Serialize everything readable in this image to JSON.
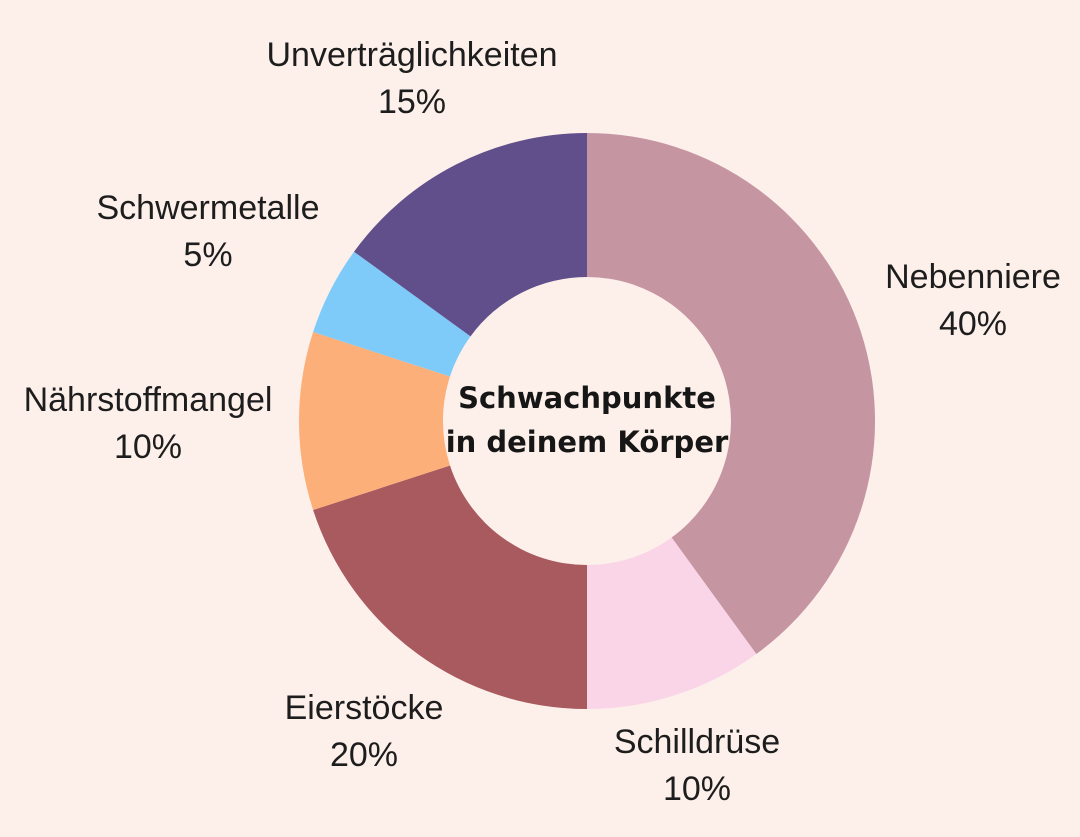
{
  "page": {
    "background_color": "#fdf0eb"
  },
  "center_title": {
    "line1": "Schwachpunkte",
    "line2": "in deinem Körper"
  },
  "chart_data": {
    "type": "pie",
    "variant": "donut",
    "title": "Schwachpunkte in deinem Körper",
    "start_angle_deg": 0,
    "direction": "clockwise",
    "legend_position": "labels-around-slices",
    "units": "percent",
    "segments": [
      {
        "label": "Nebenniere",
        "value": 40,
        "display_value": "40%",
        "color": "#c695a2"
      },
      {
        "label": "Schilldrüse",
        "value": 10,
        "display_value": "10%",
        "color": "#fad5e8"
      },
      {
        "label": "Eierstöcke",
        "value": 20,
        "display_value": "20%",
        "color": "#a85a5f"
      },
      {
        "label": "Nährstoffmangel",
        "value": 10,
        "display_value": "10%",
        "color": "#fdaf79"
      },
      {
        "label": "Schwermetalle",
        "value": 5,
        "display_value": "5%",
        "color": "#7ecbfa"
      },
      {
        "label": "Unverträglichkeiten",
        "value": 15,
        "display_value": "15%",
        "color": "#614f8b"
      }
    ]
  }
}
